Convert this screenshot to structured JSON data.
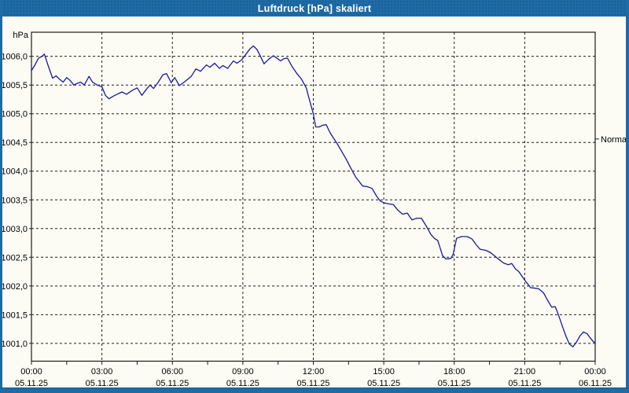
{
  "window": {
    "title": "Luftdruck [hPa] skaliert",
    "colors": {
      "titlebar": "#1e6ba6",
      "border": "#1e6ba6",
      "background": "#fcfcf4",
      "line": "#1a17a0",
      "grid": "#1c1c1c",
      "axis": "#1c1c1c",
      "text": "#000000",
      "title_text": "#ffffff"
    }
  },
  "chart_data": {
    "type": "line",
    "title": "Luftdruck [hPa] skaliert",
    "ylabel": "hPa",
    "xlabel": "",
    "ylim": [
      1000.69,
      1006.42
    ],
    "xlim_hours": [
      0,
      24
    ],
    "grid": "dashed",
    "legend": "none",
    "y_ticks": [
      {
        "value": 1006.0,
        "label": "1006,0"
      },
      {
        "value": 1005.5,
        "label": "1005,5"
      },
      {
        "value": 1005.0,
        "label": "1005,0"
      },
      {
        "value": 1004.5,
        "label": "1004,5"
      },
      {
        "value": 1004.0,
        "label": "1004,0"
      },
      {
        "value": 1003.5,
        "label": "1003,5"
      },
      {
        "value": 1003.0,
        "label": "1003,0"
      },
      {
        "value": 1002.5,
        "label": "1002,5"
      },
      {
        "value": 1002.0,
        "label": "1002,0"
      },
      {
        "value": 1001.5,
        "label": "1001,5"
      },
      {
        "value": 1001.0,
        "label": "1001,0"
      }
    ],
    "x_ticks": [
      {
        "hour": 0,
        "time": "00:00",
        "date": "05.11.25"
      },
      {
        "hour": 3,
        "time": "03:00",
        "date": "05.11.25"
      },
      {
        "hour": 6,
        "time": "06:00",
        "date": "05.11.25"
      },
      {
        "hour": 9,
        "time": "09:00",
        "date": "05.11.25"
      },
      {
        "hour": 12,
        "time": "12:00",
        "date": "05.11.25"
      },
      {
        "hour": 15,
        "time": "15:00",
        "date": "05.11.25"
      },
      {
        "hour": 18,
        "time": "18:00",
        "date": "05.11.25"
      },
      {
        "hour": 21,
        "time": "21:00",
        "date": "05.11.25"
      },
      {
        "hour": 24,
        "time": "00:00",
        "date": "06.11.25"
      }
    ],
    "minor_x_tick_step_hours": 1.5,
    "annotation": {
      "label": "Normal",
      "value": 1004.56
    },
    "series": [
      {
        "name": "Luftdruck",
        "color": "#1a17a0",
        "points": [
          [
            0.0,
            1005.75
          ],
          [
            0.15,
            1005.85
          ],
          [
            0.3,
            1005.97
          ],
          [
            0.45,
            1006.0
          ],
          [
            0.55,
            1006.04
          ],
          [
            0.7,
            1005.85
          ],
          [
            0.9,
            1005.62
          ],
          [
            1.05,
            1005.66
          ],
          [
            1.2,
            1005.6
          ],
          [
            1.35,
            1005.55
          ],
          [
            1.5,
            1005.63
          ],
          [
            1.65,
            1005.58
          ],
          [
            1.8,
            1005.5
          ],
          [
            1.95,
            1005.53
          ],
          [
            2.1,
            1005.55
          ],
          [
            2.25,
            1005.5
          ],
          [
            2.45,
            1005.65
          ],
          [
            2.6,
            1005.55
          ],
          [
            2.8,
            1005.5
          ],
          [
            3.0,
            1005.47
          ],
          [
            3.15,
            1005.32
          ],
          [
            3.3,
            1005.26
          ],
          [
            3.5,
            1005.31
          ],
          [
            3.65,
            1005.34
          ],
          [
            3.85,
            1005.38
          ],
          [
            4.05,
            1005.34
          ],
          [
            4.3,
            1005.41
          ],
          [
            4.5,
            1005.45
          ],
          [
            4.7,
            1005.32
          ],
          [
            4.9,
            1005.43
          ],
          [
            5.05,
            1005.5
          ],
          [
            5.2,
            1005.44
          ],
          [
            5.4,
            1005.55
          ],
          [
            5.6,
            1005.68
          ],
          [
            5.75,
            1005.7
          ],
          [
            5.95,
            1005.54
          ],
          [
            6.1,
            1005.63
          ],
          [
            6.3,
            1005.49
          ],
          [
            6.5,
            1005.55
          ],
          [
            6.65,
            1005.6
          ],
          [
            6.8,
            1005.65
          ],
          [
            7.0,
            1005.78
          ],
          [
            7.2,
            1005.74
          ],
          [
            7.45,
            1005.85
          ],
          [
            7.6,
            1005.81
          ],
          [
            7.8,
            1005.88
          ],
          [
            8.0,
            1005.79
          ],
          [
            8.15,
            1005.84
          ],
          [
            8.35,
            1005.79
          ],
          [
            8.6,
            1005.92
          ],
          [
            8.75,
            1005.88
          ],
          [
            8.95,
            1005.94
          ],
          [
            9.1,
            1006.02
          ],
          [
            9.3,
            1006.13
          ],
          [
            9.45,
            1006.18
          ],
          [
            9.6,
            1006.12
          ],
          [
            9.75,
            1006.0
          ],
          [
            9.9,
            1005.87
          ],
          [
            10.1,
            1005.95
          ],
          [
            10.3,
            1006.01
          ],
          [
            10.45,
            1005.97
          ],
          [
            10.6,
            1005.92
          ],
          [
            10.75,
            1005.96
          ],
          [
            10.9,
            1005.97
          ],
          [
            11.1,
            1005.82
          ],
          [
            11.3,
            1005.7
          ],
          [
            11.5,
            1005.6
          ],
          [
            11.7,
            1005.45
          ],
          [
            11.85,
            1005.22
          ],
          [
            12.0,
            1005.0
          ],
          [
            12.1,
            1004.77
          ],
          [
            12.25,
            1004.77
          ],
          [
            12.4,
            1004.8
          ],
          [
            12.55,
            1004.81
          ],
          [
            12.7,
            1004.68
          ],
          [
            12.85,
            1004.58
          ],
          [
            13.0,
            1004.49
          ],
          [
            13.2,
            1004.35
          ],
          [
            13.4,
            1004.21
          ],
          [
            13.6,
            1004.05
          ],
          [
            13.8,
            1003.9
          ],
          [
            13.95,
            1003.82
          ],
          [
            14.1,
            1003.74
          ],
          [
            14.3,
            1003.73
          ],
          [
            14.5,
            1003.7
          ],
          [
            14.7,
            1003.56
          ],
          [
            14.85,
            1003.48
          ],
          [
            15.0,
            1003.45
          ],
          [
            15.2,
            1003.43
          ],
          [
            15.4,
            1003.42
          ],
          [
            15.6,
            1003.32
          ],
          [
            15.8,
            1003.25
          ],
          [
            16.0,
            1003.27
          ],
          [
            16.2,
            1003.15
          ],
          [
            16.4,
            1003.18
          ],
          [
            16.6,
            1003.18
          ],
          [
            16.8,
            1003.05
          ],
          [
            17.0,
            1002.9
          ],
          [
            17.15,
            1002.83
          ],
          [
            17.3,
            1002.79
          ],
          [
            17.5,
            1002.53
          ],
          [
            17.65,
            1002.47
          ],
          [
            17.85,
            1002.48
          ],
          [
            17.95,
            1002.55
          ],
          [
            18.1,
            1002.83
          ],
          [
            18.3,
            1002.86
          ],
          [
            18.55,
            1002.86
          ],
          [
            18.75,
            1002.82
          ],
          [
            18.95,
            1002.71
          ],
          [
            19.1,
            1002.64
          ],
          [
            19.35,
            1002.62
          ],
          [
            19.55,
            1002.58
          ],
          [
            19.85,
            1002.48
          ],
          [
            20.1,
            1002.4
          ],
          [
            20.3,
            1002.37
          ],
          [
            20.45,
            1002.39
          ],
          [
            20.6,
            1002.3
          ],
          [
            20.75,
            1002.25
          ],
          [
            20.9,
            1002.16
          ],
          [
            21.0,
            1002.1
          ],
          [
            21.1,
            1002.05
          ],
          [
            21.25,
            1001.97
          ],
          [
            21.45,
            1001.96
          ],
          [
            21.6,
            1001.95
          ],
          [
            21.8,
            1001.88
          ],
          [
            22.0,
            1001.73
          ],
          [
            22.15,
            1001.63
          ],
          [
            22.3,
            1001.64
          ],
          [
            22.45,
            1001.48
          ],
          [
            22.6,
            1001.3
          ],
          [
            22.75,
            1001.13
          ],
          [
            22.9,
            1000.99
          ],
          [
            23.05,
            1000.94
          ],
          [
            23.2,
            1001.02
          ],
          [
            23.35,
            1001.13
          ],
          [
            23.5,
            1001.2
          ],
          [
            23.65,
            1001.17
          ],
          [
            23.8,
            1001.09
          ],
          [
            23.92,
            1001.03
          ],
          [
            24.0,
            1001.01
          ]
        ]
      }
    ]
  }
}
